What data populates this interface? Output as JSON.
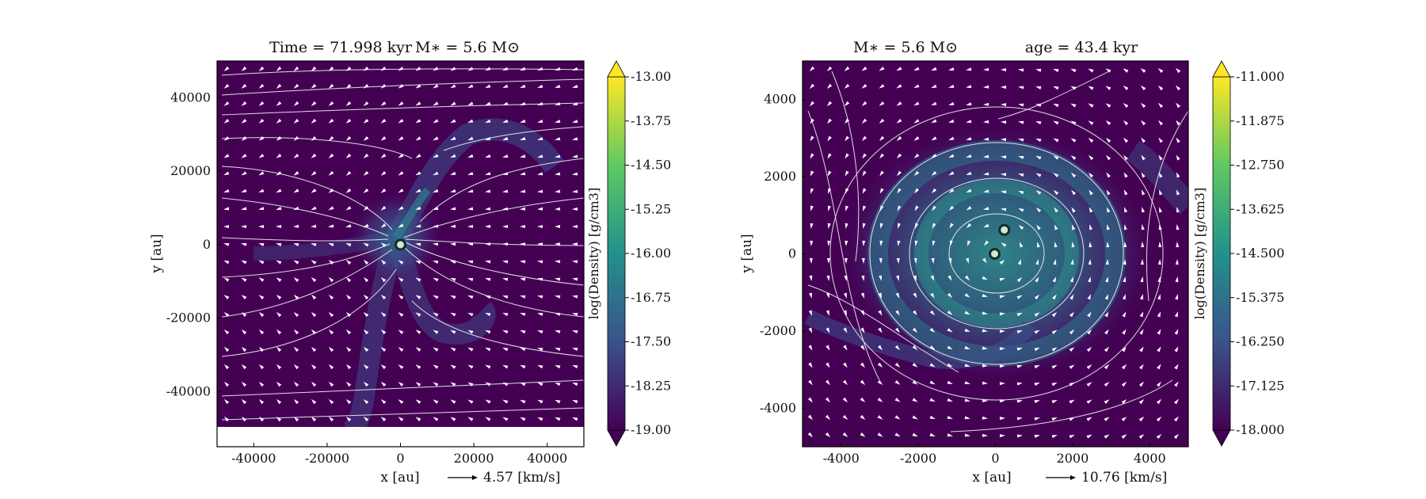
{
  "figure_note": "",
  "chart_data": [
    {
      "type": "heatmap",
      "title_left": "Time = 71.998 kyr",
      "title_right": "M∗ = 5.6 M⊙",
      "xlabel": "x [au]",
      "ylabel": "y [au]",
      "xlim": [
        -50000,
        50000
      ],
      "ylim": [
        -55000,
        50000
      ],
      "x_ticks": [
        -40000,
        -20000,
        0,
        20000,
        40000
      ],
      "y_ticks": [
        -40000,
        -20000,
        0,
        20000,
        40000
      ],
      "x_tick_labels": [
        "-40000",
        "-20000",
        "0",
        "20000",
        "40000"
      ],
      "y_tick_labels": [
        "-40000",
        "-20000",
        "0",
        "20000",
        "40000"
      ],
      "velocity_key": "4.57 [km/s]",
      "colorbar": {
        "label": "log(Density) [g/cm3]",
        "range": [
          -19.0,
          -13.0
        ],
        "ticks": [
          "-13.00",
          "-13.75",
          "-14.50",
          "-15.25",
          "-16.00",
          "-16.75",
          "-17.50",
          "-18.25",
          "-19.00"
        ],
        "extend": "both"
      },
      "sinks": [
        {
          "x": 0,
          "y": 0
        }
      ],
      "colormap": [
        "#440154",
        "#3b528b",
        "#21918c",
        "#5ec962",
        "#fde725"
      ]
    },
    {
      "type": "heatmap",
      "title_left": "M∗ = 5.6 M⊙",
      "title_right": "age = 43.4 kyr",
      "xlabel": "x [au]",
      "ylabel": "y [au]",
      "xlim": [
        -5000,
        5000
      ],
      "ylim": [
        -5000,
        5000
      ],
      "x_ticks": [
        -4000,
        -2000,
        0,
        2000,
        4000
      ],
      "y_ticks": [
        -4000,
        -2000,
        0,
        2000,
        4000
      ],
      "x_tick_labels": [
        "-4000",
        "-2000",
        "0",
        "2000",
        "4000"
      ],
      "y_tick_labels": [
        "-4000",
        "-2000",
        "0",
        "2000",
        "4000"
      ],
      "velocity_key": "10.76 [km/s]",
      "colorbar": {
        "label": "log(Density) [g/cm3]",
        "range": [
          -18.0,
          -11.0
        ],
        "ticks": [
          "-11.000",
          "-11.875",
          "-12.750",
          "-13.625",
          "-14.500",
          "-15.375",
          "-16.250",
          "-17.125",
          "-18.000"
        ],
        "extend": "both"
      },
      "sinks": [
        {
          "x": 230,
          "y": 620
        },
        {
          "x": -20,
          "y": 0
        }
      ],
      "colormap": [
        "#440154",
        "#3b528b",
        "#21918c",
        "#5ec962",
        "#fde725"
      ]
    }
  ]
}
